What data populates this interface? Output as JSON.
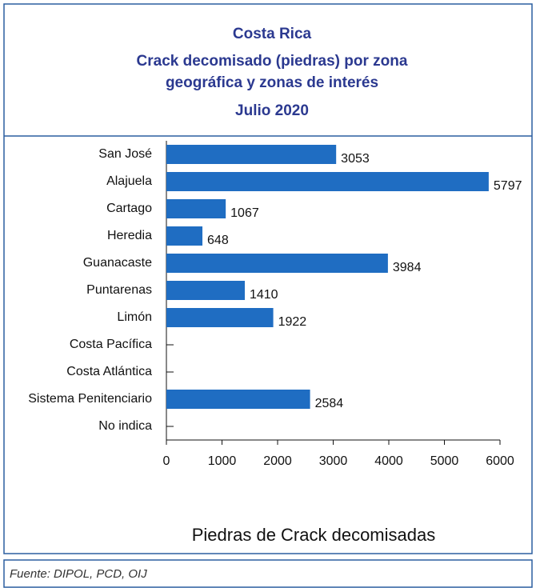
{
  "chart_data": {
    "type": "barh",
    "title": [
      "Costa Rica",
      "Crack decomisado (piedras) por zona",
      "geográfica y zonas de interés",
      "Julio  2020"
    ],
    "categories": [
      "San José",
      "Alajuela",
      "Cartago",
      "Heredia",
      "Guanacaste",
      "Puntarenas",
      "Limón",
      "Costa Pacífica",
      "Costa Atlántica",
      "Sistema Penitenciario",
      "No indica"
    ],
    "values": [
      3053,
      5797,
      1067,
      648,
      3984,
      1410,
      1922,
      null,
      null,
      2584,
      null
    ],
    "color": "#1f6dc2",
    "xlim": [
      0,
      6000
    ],
    "xticks": [
      0,
      1000,
      2000,
      3000,
      4000,
      5000,
      6000
    ],
    "xlabel": "Piedras de Crack decomisadas"
  },
  "source": "Fuente: DIPOL, PCD, OIJ"
}
